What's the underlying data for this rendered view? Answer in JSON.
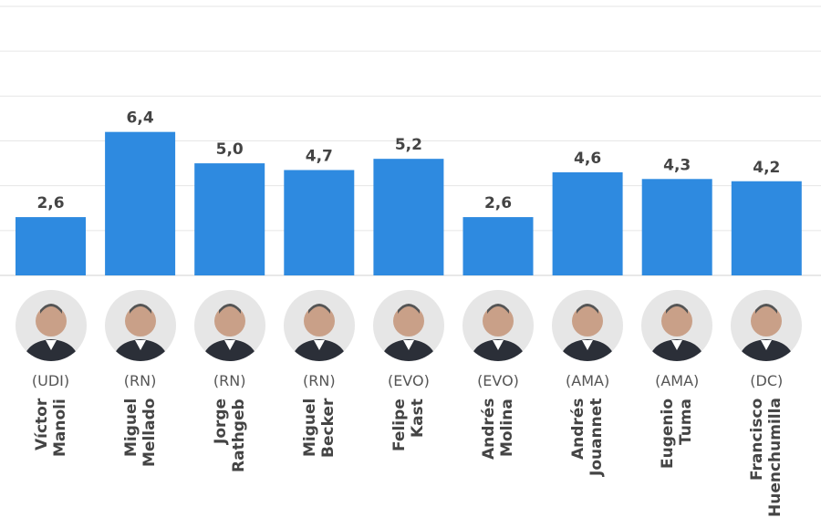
{
  "chart_data": {
    "type": "bar",
    "title": "",
    "xlabel": "",
    "ylabel": "",
    "ylim": [
      0,
      12
    ],
    "grid": true,
    "bar_color": "#2E8AE0",
    "categories": [
      {
        "first": "Víctor",
        "last": "Manoli",
        "party": "(UDI)"
      },
      {
        "first": "Miguel",
        "last": "Mellado",
        "party": "(RN)"
      },
      {
        "first": "Jorge",
        "last": "Rathgeb",
        "party": "(RN)"
      },
      {
        "first": "Miguel",
        "last": "Becker",
        "party": "(RN)"
      },
      {
        "first": "Felipe",
        "last": "Kast",
        "party": "(EVO)"
      },
      {
        "first": "Andrés",
        "last": "Molina",
        "party": "(EVO)"
      },
      {
        "first": "Andrés",
        "last": "Jouannet",
        "party": "(AMA)"
      },
      {
        "first": "Eugenio",
        "last": "Tuma",
        "party": "(AMA)"
      },
      {
        "first": "Francisco",
        "last": "Huenchumilla",
        "party": "(DC)"
      }
    ],
    "values": [
      2.6,
      6.4,
      5.0,
      4.7,
      5.2,
      2.6,
      4.6,
      4.3,
      4.2
    ],
    "value_labels": [
      "2,6",
      "6,4",
      "5,0",
      "4,7",
      "5,2",
      "2,6",
      "4,6",
      "4,3",
      "4,2"
    ]
  }
}
